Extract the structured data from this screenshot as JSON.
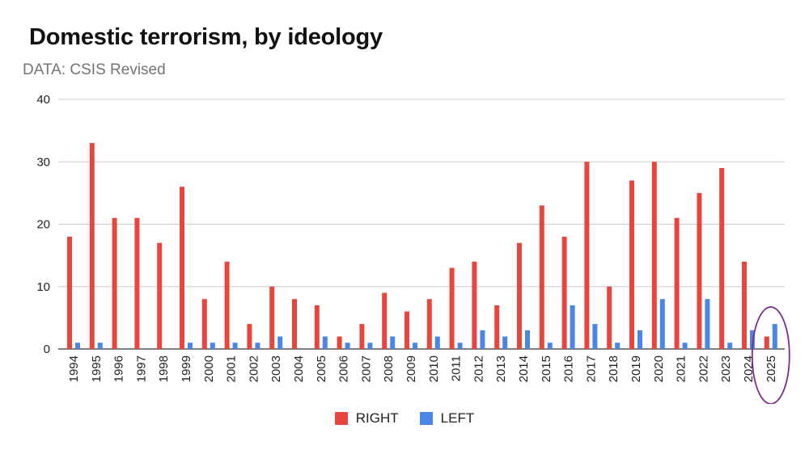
{
  "chart_data": {
    "type": "bar",
    "title": "Domestic terrorism, by ideology",
    "subtitle": "DATA: CSIS Revised",
    "xlabel": "",
    "ylabel": "",
    "ylim": [
      0,
      40
    ],
    "yticks": [
      0,
      10,
      20,
      30,
      40
    ],
    "grid": true,
    "legend_position": "bottom",
    "categories": [
      "1994",
      "1995",
      "1996",
      "1997",
      "1998",
      "1999",
      "2000",
      "2001",
      "2002",
      "2003",
      "2004",
      "2005",
      "2006",
      "2007",
      "2008",
      "2009",
      "2010",
      "2011",
      "2012",
      "2013",
      "2014",
      "2015",
      "2016",
      "2017",
      "2018",
      "2019",
      "2020",
      "2021",
      "2022",
      "2023",
      "2024",
      "2025"
    ],
    "series": [
      {
        "name": "RIGHT",
        "color": "#e8453c",
        "values": [
          18,
          33,
          21,
          21,
          17,
          26,
          8,
          14,
          4,
          10,
          8,
          7,
          2,
          4,
          9,
          6,
          8,
          13,
          14,
          7,
          17,
          23,
          18,
          30,
          10,
          27,
          30,
          21,
          25,
          29,
          14,
          2
        ]
      },
      {
        "name": "LEFT",
        "color": "#4a86e8",
        "values": [
          1,
          1,
          0,
          0,
          0,
          1,
          1,
          1,
          1,
          2,
          0,
          2,
          1,
          1,
          2,
          1,
          2,
          1,
          3,
          2,
          3,
          1,
          7,
          4,
          1,
          3,
          8,
          1,
          8,
          1,
          3,
          4
        ]
      }
    ],
    "annotation": {
      "type": "ellipse-highlight",
      "category": "2025",
      "color": "#7b2d8e"
    }
  }
}
